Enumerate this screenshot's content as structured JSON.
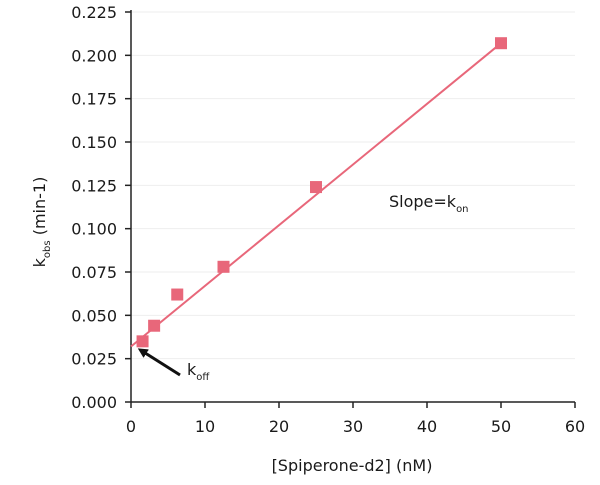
{
  "chart_data": {
    "type": "scatter",
    "x": [
      1.5625,
      3.125,
      6.25,
      12.5,
      25,
      50
    ],
    "y": [
      0.035,
      0.044,
      0.062,
      0.078,
      0.124,
      0.207
    ],
    "fit_line": {
      "x": [
        0,
        50
      ],
      "y": [
        0.032,
        0.207
      ]
    },
    "xlim": [
      0,
      60
    ],
    "ylim": [
      0,
      0.225
    ],
    "xticks": [
      "0",
      "10",
      "20",
      "30",
      "40",
      "50",
      "60"
    ],
    "yticks": [
      "0.000",
      "0.025",
      "0.050",
      "0.075",
      "0.100",
      "0.125",
      "0.150",
      "0.175",
      "0.200",
      "0.225"
    ],
    "xlabel": "[Spiperone-d2] (nM)",
    "ylabel_main": "k",
    "ylabel_sub": "obs",
    "ylabel_rest": " (min-1)",
    "annotation_slope_main": "Slope=k",
    "annotation_slope_sub": "on",
    "annotation_koff_main": "k",
    "annotation_koff_sub": "off",
    "marker_color": "#e8677a",
    "line_color": "#e8677a",
    "grid": true,
    "grid_color": "#eeeeee"
  }
}
